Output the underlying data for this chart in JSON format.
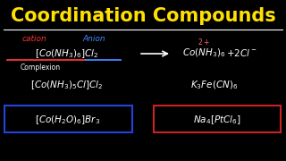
{
  "bg_color": "#000000",
  "title": "Coordination Compounds",
  "title_color": "#FFE000",
  "title_fontsize": 15,
  "separator_color": "#FFFFFF",
  "cation_text": "cation",
  "cation_color": "#FF3333",
  "anion_text": "Anion",
  "anion_color": "#4488FF",
  "formula1_color": "#FFFFFF",
  "complexion_text": "Complexion",
  "complexion_color": "#FFFFFF",
  "rhs_color": "#FFFFFF",
  "formula2_color": "#FFFFFF",
  "formula3_color": "#FFFFFF",
  "box1_color": "#FFFFFF",
  "box1_rect_color": "#2244DD",
  "box2_color": "#FFFFFF",
  "box2_rect_color": "#CC2222"
}
